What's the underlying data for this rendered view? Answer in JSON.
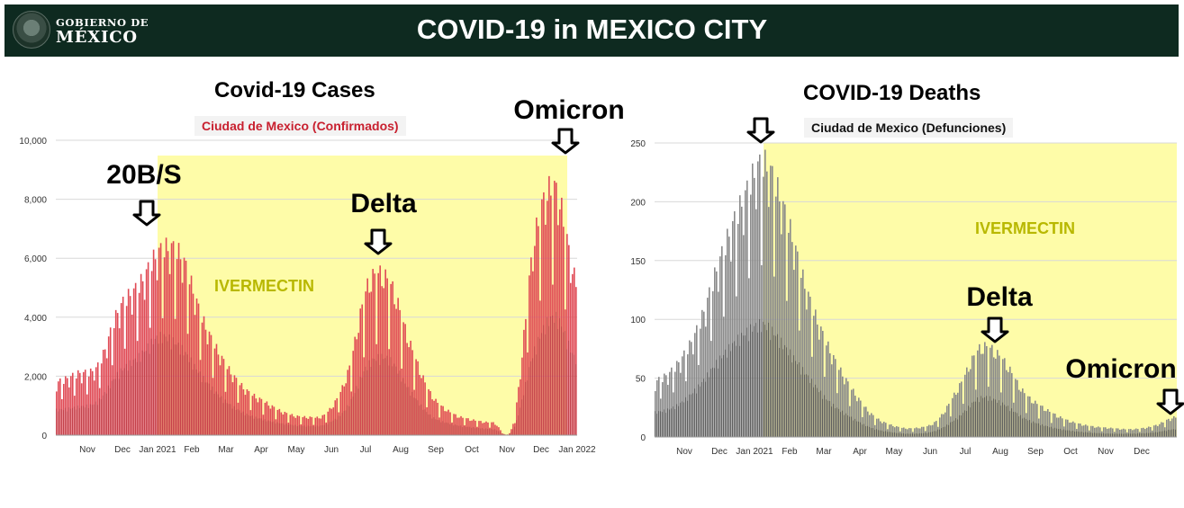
{
  "header": {
    "logo_line1": "GOBIERNO DE",
    "logo_line2": "MÉXICO",
    "title": "COVID-19 in MEXICO CITY"
  },
  "colors": {
    "header_bg": "#0e2a20",
    "ivermectin_shade": "#fefca8",
    "ivermectin_text": "#b8b800",
    "cases_bar": "#e04a55",
    "cases_avg": "#a93640",
    "deaths_bar": "#8a8a8a",
    "deaths_avg": "#3a3a3a"
  },
  "chart_data": [
    {
      "type": "bar",
      "title": "Covid-19 Cases",
      "subtitle": "Ciudad de Mexico (Confirmados)",
      "ylim": [
        0,
        10000
      ],
      "yticks": [
        "0",
        "2,000",
        "4,000",
        "6,000",
        "8,000",
        "10,000"
      ],
      "xticks": [
        "Nov",
        "Dec",
        "Jan 2021",
        "Feb",
        "Mar",
        "Apr",
        "May",
        "Jun",
        "Jul",
        "Aug",
        "Sep",
        "Oct",
        "Nov",
        "Dec",
        "Jan 2022"
      ],
      "grid": true,
      "series": [
        {
          "values": [
            1900,
            2200,
            2500,
            4500,
            5400,
            6600,
            6400,
            4200,
            2700,
            1700,
            1200,
            800,
            650,
            800,
            2200,
            5400,
            5500,
            3300,
            1500,
            800,
            550,
            450,
            500,
            7000,
            8800,
            5500
          ]
        },
        {
          "values": [
            900,
            1000,
            1200,
            2200,
            2800,
            3500,
            3100,
            2100,
            1300,
            800,
            550,
            400,
            330,
            400,
            1000,
            2500,
            2700,
            1600,
            700,
            400,
            280,
            220,
            240,
            3000,
            4200,
            2700
          ]
        }
      ],
      "annotations": [
        {
          "label": "20B/S",
          "x": "Dec 2020",
          "y": 7000
        },
        {
          "label": "Delta",
          "x": "Jul 2021",
          "y": 5900
        },
        {
          "label": "Omicron",
          "x": "Jan 2022",
          "y": 9400
        },
        {
          "label": "IVERMECTIN",
          "region_start": "Jan 2021",
          "region_end": "Jan 2022",
          "y": 9500
        }
      ]
    },
    {
      "type": "bar",
      "title": "COVID-19 Deaths",
      "subtitle": "Ciudad de Mexico (Defunciones)",
      "ylim": [
        0,
        250
      ],
      "yticks": [
        "0",
        "50",
        "100",
        "150",
        "200",
        "250"
      ],
      "xticks": [
        "Nov",
        "Dec",
        "Jan 2021",
        "Feb",
        "Mar",
        "Apr",
        "May",
        "Jun",
        "Jul",
        "Aug",
        "Sep",
        "Oct",
        "Nov",
        "Dec"
      ],
      "grid": true,
      "series": [
        {
          "values": [
            50,
            65,
            100,
            160,
            210,
            245,
            200,
            130,
            80,
            45,
            20,
            10,
            8,
            15,
            45,
            80,
            70,
            40,
            25,
            15,
            10,
            8,
            7,
            10,
            18
          ]
        },
        {
          "values": [
            22,
            28,
            45,
            70,
            90,
            100,
            80,
            55,
            32,
            18,
            8,
            4,
            3,
            6,
            18,
            35,
            30,
            17,
            10,
            6,
            4,
            3,
            3,
            4,
            7
          ]
        }
      ],
      "annotations": [
        {
          "label": "Delta",
          "x": "Aug 2021",
          "y": 80
        },
        {
          "label": "Omicron",
          "x": "Jan 2022",
          "y": 18
        },
        {
          "label": "IVERMECTIN",
          "region_start": "Jan 2021",
          "region_end": "Jan 2022",
          "y": 250
        }
      ]
    }
  ]
}
